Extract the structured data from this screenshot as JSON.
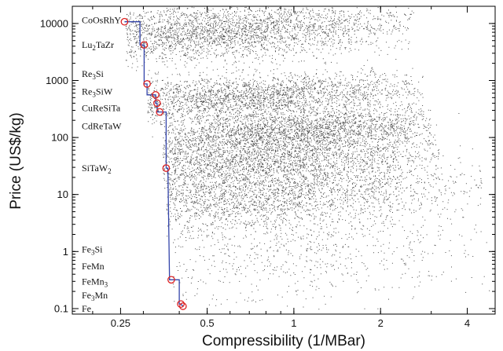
{
  "chart_data": {
    "type": "scatter",
    "xlabel": "Compressibility (1/MBar)",
    "ylabel": "Price (US$/kg)",
    "xscale": "log",
    "yscale": "log",
    "xlim": [
      0.17,
      5.0
    ],
    "ylim": [
      0.08,
      20000
    ],
    "grid": false,
    "x_ticks": [
      {
        "value": 0.25,
        "label": "0.25"
      },
      {
        "value": 0.5,
        "label": "0.5"
      },
      {
        "value": 1,
        "label": "1"
      },
      {
        "value": 2,
        "label": "2"
      },
      {
        "value": 4,
        "label": "4"
      }
    ],
    "y_ticks": [
      {
        "value": 0.1,
        "label": "0.1"
      },
      {
        "value": 1,
        "label": "1"
      },
      {
        "value": 10,
        "label": "10"
      },
      {
        "value": 100,
        "label": "100"
      },
      {
        "value": 1000,
        "label": "1000"
      },
      {
        "value": 10000,
        "label": "10000"
      }
    ],
    "point_color": "#111111",
    "frontier_color": "#3344aa",
    "highlight_color": "#dd2222",
    "point_clusters": [
      {
        "x_center": 0.55,
        "y_center": 7000,
        "x_spread": 0.35,
        "y_spread": 0.25,
        "count": 9000,
        "x_min": 0.26,
        "x_max": 2.6
      },
      {
        "x_center": 0.7,
        "y_center": 500,
        "x_spread": 0.32,
        "y_spread": 0.2,
        "count": 3200,
        "x_min": 0.31,
        "x_max": 2.8
      },
      {
        "x_center": 1.0,
        "y_center": 130,
        "x_spread": 0.3,
        "y_spread": 0.18,
        "count": 2600,
        "x_min": 0.35,
        "x_max": 3.0
      },
      {
        "x_center": 0.75,
        "y_center": 40,
        "x_spread": 0.35,
        "y_spread": 0.25,
        "count": 3200,
        "x_min": 0.35,
        "x_max": 3.2
      },
      {
        "x_center": 0.7,
        "y_center": 9,
        "x_spread": 0.38,
        "y_spread": 0.3,
        "count": 4200,
        "x_min": 0.36,
        "x_max": 4.5
      },
      {
        "x_center": 0.9,
        "y_center": 0.9,
        "x_spread": 0.4,
        "y_spread": 0.45,
        "count": 900,
        "x_min": 0.38,
        "x_max": 4.8
      }
    ],
    "pareto_points": [
      {
        "x": 0.258,
        "y": 10700
      },
      {
        "x": 0.302,
        "y": 4200
      },
      {
        "x": 0.309,
        "y": 870
      },
      {
        "x": 0.331,
        "y": 560
      },
      {
        "x": 0.335,
        "y": 400
      },
      {
        "x": 0.342,
        "y": 280
      },
      {
        "x": 0.36,
        "y": 29
      },
      {
        "x": 0.375,
        "y": 0.32
      },
      {
        "x": 0.405,
        "y": 0.12
      },
      {
        "x": 0.412,
        "y": 0.11
      }
    ],
    "frontier": [
      {
        "x": 0.258,
        "y": 10700
      },
      {
        "x": 0.292,
        "y": 10700
      },
      {
        "x": 0.292,
        "y": 4200
      },
      {
        "x": 0.302,
        "y": 4200
      },
      {
        "x": 0.302,
        "y": 870
      },
      {
        "x": 0.309,
        "y": 870
      },
      {
        "x": 0.309,
        "y": 560
      },
      {
        "x": 0.331,
        "y": 560
      },
      {
        "x": 0.331,
        "y": 400
      },
      {
        "x": 0.335,
        "y": 400
      },
      {
        "x": 0.335,
        "y": 280
      },
      {
        "x": 0.342,
        "y": 280
      },
      {
        "x": 0.36,
        "y": 280
      },
      {
        "x": 0.36,
        "y": 29
      },
      {
        "x": 0.365,
        "y": 29
      },
      {
        "x": 0.37,
        "y": 0.32
      },
      {
        "x": 0.4,
        "y": 0.32
      },
      {
        "x": 0.4,
        "y": 0.12
      },
      {
        "x": 0.405,
        "y": 0.12
      },
      {
        "x": 0.412,
        "y": 0.11
      }
    ],
    "compound_labels": [
      {
        "id": "coosrhy",
        "text": "CoOsRhY",
        "y": 11500
      },
      {
        "id": "lu2tazr",
        "base": "Lu",
        "sub": "2",
        "tail": "TaZr",
        "y": 4200
      },
      {
        "id": "re3si",
        "base": "Re",
        "sub": "3",
        "tail": "Si",
        "y": 1300
      },
      {
        "id": "re3siw",
        "base": "Re",
        "sub": "3",
        "tail": "SiW",
        "y": 640
      },
      {
        "id": "curesita",
        "text": "CuReSiTa",
        "y": 330
      },
      {
        "id": "cdretaw",
        "text": "CdReTaW",
        "y": 160
      },
      {
        "id": "sitaw2",
        "base": "SiTaW",
        "sub": "2",
        "tail": "",
        "y": 29
      },
      {
        "id": "fe3si",
        "base": "Fe",
        "sub": "3",
        "tail": "Si",
        "y": 1.1
      },
      {
        "id": "femn",
        "text": "FeMn",
        "y": 0.55
      },
      {
        "id": "femn3",
        "base": "FeMn",
        "sub": "3",
        "tail": "",
        "y": 0.3
      },
      {
        "id": "fe3mn",
        "base": "Fe",
        "sub": "3",
        "tail": "Mn",
        "y": 0.17
      },
      {
        "id": "fe",
        "text": "Fe",
        "y": 0.1
      }
    ]
  }
}
